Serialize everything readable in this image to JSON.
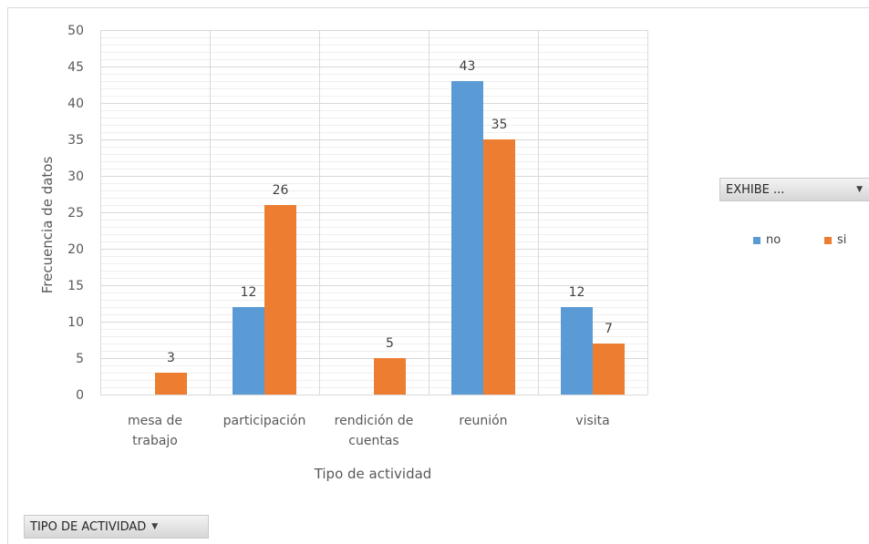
{
  "chart_data": {
    "type": "bar",
    "categories": [
      [
        "mesa de",
        "trabajo"
      ],
      [
        "participación"
      ],
      [
        "rendición de",
        "cuentas"
      ],
      [
        "reunión"
      ],
      [
        "visita"
      ]
    ],
    "series": [
      {
        "name": "no",
        "values": [
          null,
          12,
          null,
          43,
          12
        ],
        "color": "#5b9bd5"
      },
      {
        "name": "si",
        "values": [
          3,
          26,
          5,
          35,
          7
        ],
        "color": "#ed7d31"
      }
    ],
    "xlabel": "Tipo de actividad",
    "ylabel": "Frecuencia de datos",
    "ylim": [
      0,
      50
    ],
    "yticks": [
      0,
      5,
      10,
      15,
      20,
      25,
      30,
      35,
      40,
      45,
      50
    ],
    "grid": true,
    "legend_position": "right"
  },
  "legend_filter": {
    "label": "EXHIBE ..."
  },
  "axis_filter": {
    "label": "TIPO DE ACTIVIDAD"
  },
  "legend": {
    "items": [
      "no",
      "si"
    ]
  }
}
